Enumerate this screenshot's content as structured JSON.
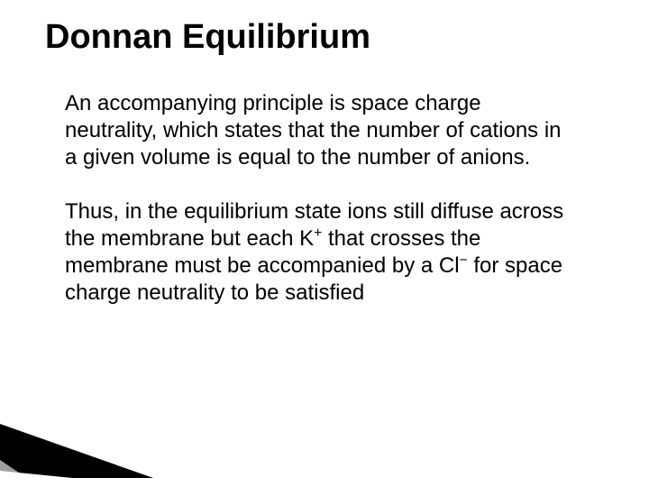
{
  "slide": {
    "title": "Donnan Equilibrium",
    "title_fontsize": 38,
    "title_color": "#000000",
    "body_fontsize": 24,
    "body_color": "#000000",
    "background_color": "#ffffff",
    "bullet_glyph": "",
    "bullets": [
      {
        "segments": [
          {
            "text": "An accompanying principle is space charge neutrality, which states that the number of cations in a given volume is equal to the number of anions."
          }
        ]
      },
      {
        "segments": [
          {
            "text": "Thus, in the equilibrium state ions still diffuse across the membrane but each K"
          },
          {
            "text": "+",
            "sup": true
          },
          {
            "text": " that crosses the membrane must be accompanied by a Cl"
          },
          {
            "text": "−",
            "sup": true
          },
          {
            "text": " for space charge neutrality to be satisfied"
          }
        ]
      }
    ],
    "decoration": {
      "colors": {
        "black": "#000000",
        "grey": "#9e9e9e",
        "white": "#ffffff"
      }
    }
  }
}
